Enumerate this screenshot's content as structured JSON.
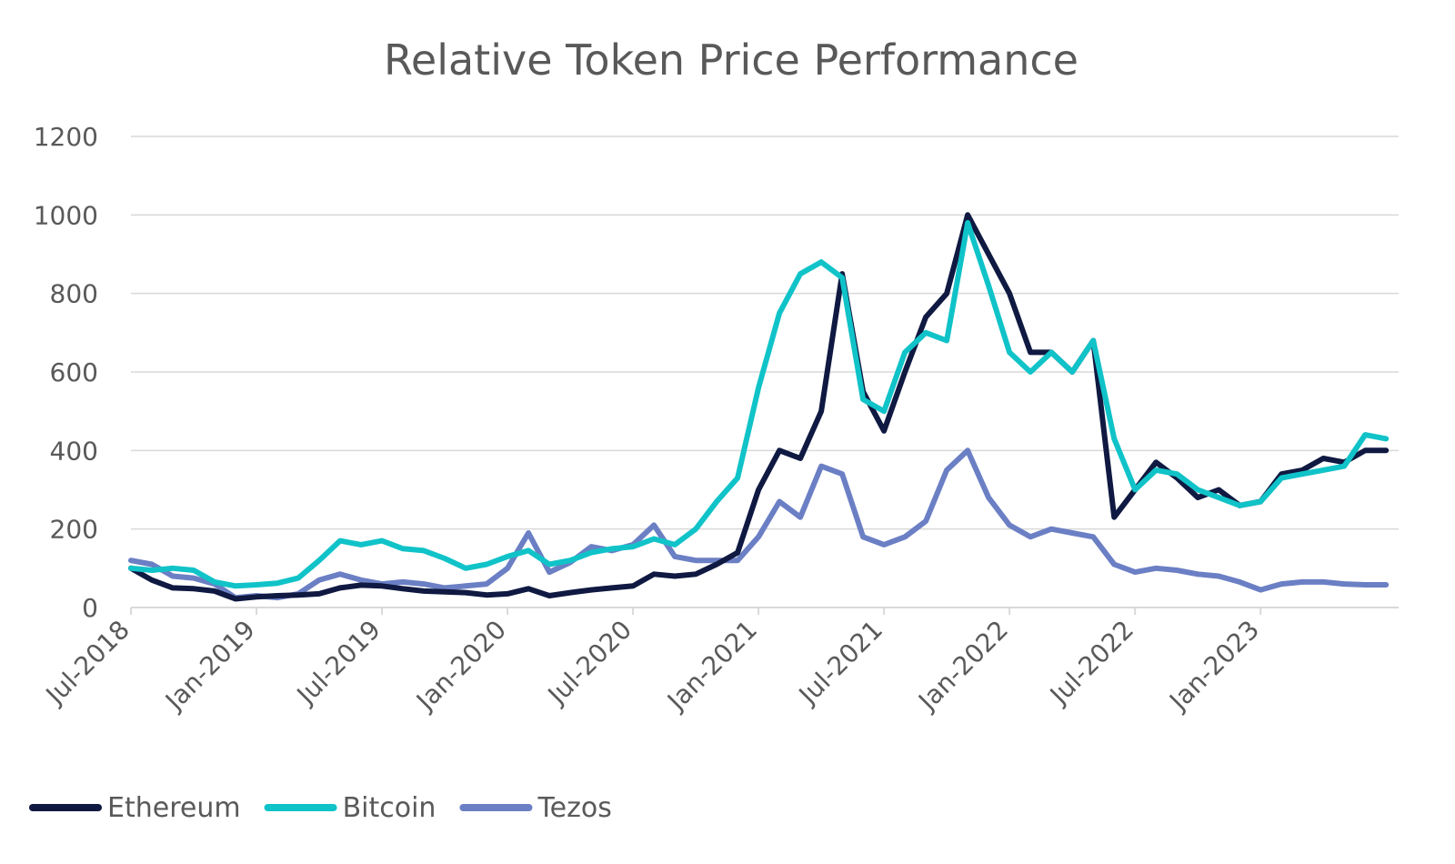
{
  "chart_data": {
    "type": "line",
    "title": "Relative Token Price Performance",
    "xlabel": "",
    "ylabel": "",
    "ylim": [
      0,
      1200
    ],
    "yticks": [
      0,
      200,
      400,
      600,
      800,
      1000,
      1200
    ],
    "xlim": [
      "2018-07",
      "2023-07"
    ],
    "xticks": [
      "Jul-2018",
      "Jan-2019",
      "Jul-2019",
      "Jan-2020",
      "Jul-2020",
      "Jan-2021",
      "Jul-2021",
      "Jan-2022",
      "Jul-2022",
      "Jan-2023"
    ],
    "grid": true,
    "legend_position": "bottom-left",
    "x": [
      "2018-07",
      "2018-08",
      "2018-09",
      "2018-10",
      "2018-11",
      "2018-12",
      "2019-01",
      "2019-02",
      "2019-03",
      "2019-04",
      "2019-05",
      "2019-06",
      "2019-07",
      "2019-08",
      "2019-09",
      "2019-10",
      "2019-11",
      "2019-12",
      "2020-01",
      "2020-02",
      "2020-03",
      "2020-04",
      "2020-05",
      "2020-06",
      "2020-07",
      "2020-08",
      "2020-09",
      "2020-10",
      "2020-11",
      "2020-12",
      "2021-01",
      "2021-02",
      "2021-03",
      "2021-04",
      "2021-05",
      "2021-06",
      "2021-07",
      "2021-08",
      "2021-09",
      "2021-10",
      "2021-11",
      "2021-12",
      "2022-01",
      "2022-02",
      "2022-03",
      "2022-04",
      "2022-05",
      "2022-06",
      "2022-07",
      "2022-08",
      "2022-09",
      "2022-10",
      "2022-11",
      "2022-12",
      "2023-01",
      "2023-02",
      "2023-03",
      "2023-04",
      "2023-05",
      "2023-06",
      "2023-07"
    ],
    "series": [
      {
        "name": "Ethereum",
        "color": "#0f1941",
        "values": [
          100,
          70,
          50,
          48,
          42,
          22,
          27,
          30,
          32,
          35,
          50,
          57,
          55,
          48,
          42,
          40,
          38,
          32,
          35,
          48,
          30,
          38,
          45,
          50,
          55,
          85,
          80,
          85,
          110,
          140,
          300,
          400,
          380,
          500,
          850,
          550,
          450,
          600,
          740,
          800,
          1000,
          900,
          800,
          650,
          650,
          600,
          680,
          230,
          300,
          370,
          330,
          280,
          300,
          260,
          270,
          340,
          350,
          380,
          370,
          400,
          400
        ]
      },
      {
        "name": "Bitcoin",
        "color": "#10c3c8",
        "values": [
          100,
          95,
          100,
          95,
          65,
          55,
          58,
          62,
          75,
          120,
          170,
          160,
          170,
          150,
          145,
          125,
          100,
          110,
          130,
          145,
          110,
          120,
          140,
          150,
          155,
          175,
          160,
          200,
          270,
          330,
          560,
          750,
          850,
          880,
          840,
          530,
          500,
          650,
          700,
          680,
          980,
          820,
          650,
          600,
          650,
          600,
          680,
          430,
          300,
          350,
          340,
          300,
          280,
          260,
          270,
          330,
          340,
          350,
          360,
          440,
          430
        ]
      },
      {
        "name": "Tezos",
        "color": "#6b7fc4",
        "values": [
          120,
          110,
          80,
          75,
          60,
          25,
          30,
          25,
          35,
          70,
          85,
          70,
          60,
          65,
          60,
          50,
          55,
          60,
          100,
          190,
          90,
          115,
          155,
          145,
          160,
          210,
          130,
          120,
          120,
          120,
          180,
          270,
          230,
          360,
          340,
          180,
          160,
          180,
          220,
          350,
          400,
          280,
          210,
          180,
          200,
          190,
          180,
          110,
          90,
          100,
          95,
          85,
          80,
          65,
          45,
          60,
          65,
          65,
          60,
          58,
          58
        ]
      }
    ]
  }
}
